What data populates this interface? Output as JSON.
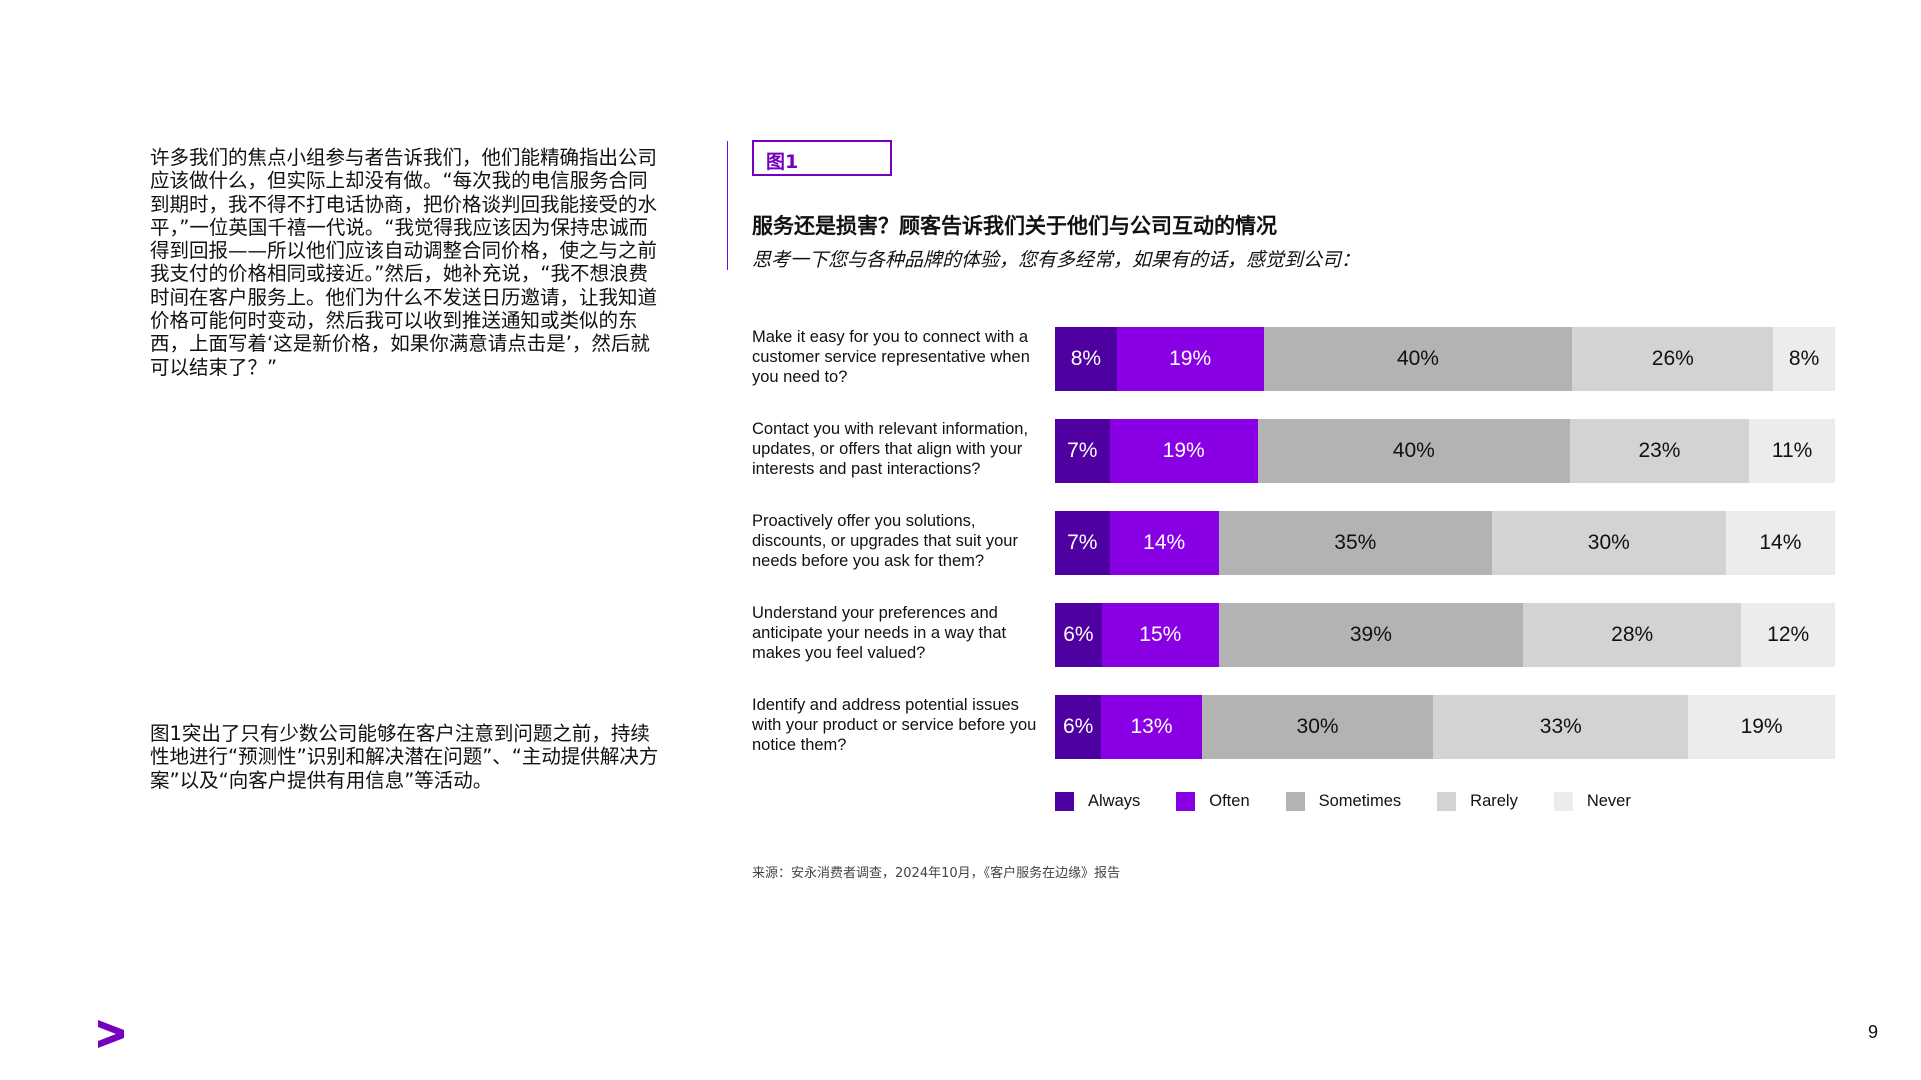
{
  "left_text": {
    "paragraph1": "许多我们的焦点小组参与者告诉我们，他们能精确指出公司应该做什么，但实际上却没有做。“每次我的电信服务合同到期时，我不得不打电话协商，把价格谈判回我能接受的水平，”一位英国千禧一代说。“我觉得我应该因为保持忠诚而得到回报——所以他们应该自动调整合同价格，使之与之前我支付的价格相同或接近。”然后，她补充说，“我不想浪费时间在客户服务上。他们为什么不发送日历邀请，让我知道价格可能何时变动，然后我可以收到推送通知或类似的东西，上面写着‘这是新价格，如果你满意请点击是’，然后就可以结束了？”",
    "paragraph2": "图1突出了只有少数公司能够在客户注意到问题之前，持续性地进行“预测性”识别和解决潜在问题”、“主动提供解决方案”以及“向客户提供有用信息”等活动。"
  },
  "figure_label": "图1",
  "chart_data": {
    "type": "bar",
    "orientation": "horizontal-stacked-100",
    "title": "服务还是损害？顾客告诉我们关于他们与公司互动的情况",
    "subtitle": "思考一下您与各种品牌的体验，您有多经常，如果有的话，感觉到公司：",
    "categories": [
      "Make it easy for you to connect with a customer service representative when you need to?",
      "Contact you with relevant information, updates, or offers that align with your interests and past interactions?",
      "Proactively offer you solutions, discounts, or upgrades that suit your needs before you ask for them?",
      "Understand your preferences and anticipate your needs in a way that makes you feel valued?",
      "Identify and address potential issues with your product or service before you notice them?"
    ],
    "series": [
      {
        "name": "Always",
        "color": "#4f00a0",
        "values": [
          8,
          7,
          7,
          6,
          6
        ]
      },
      {
        "name": "Often",
        "color": "#8a00e5",
        "values": [
          19,
          19,
          14,
          15,
          13
        ]
      },
      {
        "name": "Sometimes",
        "color": "#b3b3b3",
        "values": [
          40,
          40,
          35,
          39,
          30
        ]
      },
      {
        "name": "Rarely",
        "color": "#d3d3d3",
        "values": [
          26,
          23,
          30,
          28,
          33
        ]
      },
      {
        "name": "Never",
        "color": "#ececec",
        "values": [
          8,
          11,
          14,
          12,
          19
        ]
      }
    ],
    "value_suffix": "%",
    "legend_position": "bottom"
  },
  "source": "来源：安永消费者调查，2024年10月，《客户服务在边缘》报告",
  "page_number": "9",
  "brand_color": "#7500c0"
}
